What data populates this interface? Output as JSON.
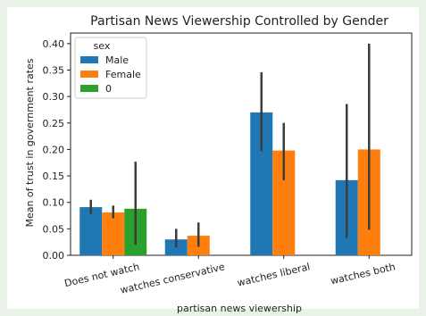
{
  "chart_data": {
    "type": "bar",
    "title": "Partisan News Viewership Controlled by Gender",
    "xlabel": "partisan news viewership",
    "ylabel": "Mean of trust in government rates",
    "categories": [
      "Does not watch",
      "watches conservative",
      "watches liberal",
      "watches both"
    ],
    "ylim": [
      0,
      0.42
    ],
    "yticks": [
      0.0,
      0.05,
      0.1,
      0.15,
      0.2,
      0.25,
      0.3,
      0.35,
      0.4
    ],
    "legend": {
      "title": "sex",
      "position": "top-left"
    },
    "series": [
      {
        "name": "Male",
        "color": "#1f77b4",
        "values": [
          0.091,
          0.03,
          0.27,
          0.142
        ],
        "ci_low": [
          0.078,
          0.015,
          0.197,
          0.033
        ],
        "ci_high": [
          0.105,
          0.05,
          0.346,
          0.286
        ]
      },
      {
        "name": "Female",
        "color": "#ff7f0e",
        "values": [
          0.081,
          0.037,
          0.198,
          0.2
        ],
        "ci_low": [
          0.07,
          0.016,
          0.142,
          0.048
        ],
        "ci_high": [
          0.094,
          0.062,
          0.25,
          0.4
        ]
      },
      {
        "name": "0",
        "color": "#2ca02c",
        "values": [
          0.088,
          null,
          null,
          null
        ],
        "ci_low": [
          0.02,
          null,
          null,
          null
        ],
        "ci_high": [
          0.177,
          null,
          null,
          null
        ]
      }
    ],
    "grid": false
  }
}
